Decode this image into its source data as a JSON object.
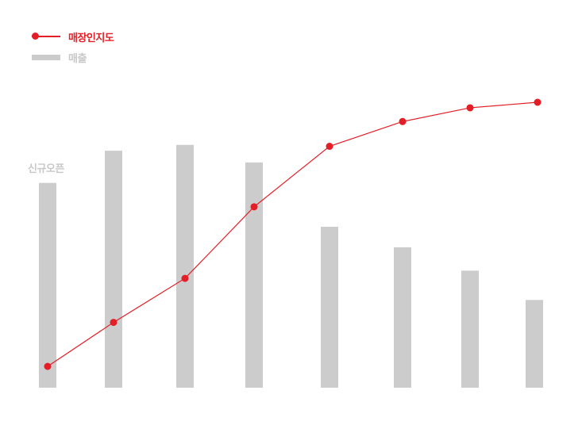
{
  "chart_data": {
    "type": "bar",
    "title": "",
    "xlabel": "",
    "ylabel": "",
    "categories": [
      "",
      "",
      "",
      "",
      "",
      "",
      "",
      ""
    ],
    "series": [
      {
        "name": "매출",
        "type": "bar",
        "values": [
          70,
          81,
          83,
          77,
          55,
          48,
          40,
          30
        ]
      },
      {
        "name": "매장인지도",
        "type": "line",
        "values": [
          4,
          20,
          36,
          62,
          84,
          93,
          98,
          100
        ]
      }
    ],
    "ylim": [
      0,
      100
    ],
    "y2lim": [
      0,
      100
    ],
    "annotation": "신규오픈",
    "grid": false,
    "legend_position": "top-left",
    "colors": {
      "line": "#e41e26",
      "bar": "#cccccc"
    }
  }
}
